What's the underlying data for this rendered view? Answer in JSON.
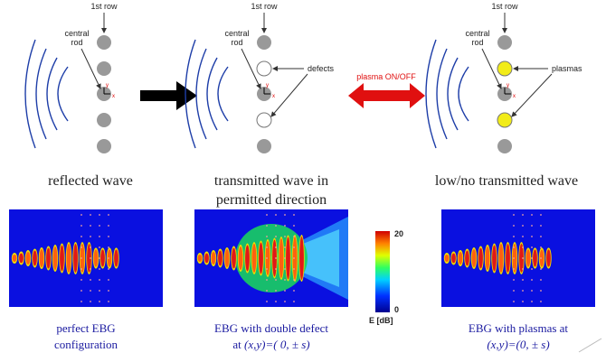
{
  "panels": [
    {
      "row_label": "1st row",
      "rod_label": [
        "central",
        "rod"
      ],
      "caption": [
        "reflected wave"
      ],
      "sim_caption": [
        "perfect EBG",
        "configuration"
      ]
    },
    {
      "row_label": "1st row",
      "rod_label": [
        "central",
        "rod"
      ],
      "annotation": "defects",
      "caption": [
        "transmitted wave in",
        "permitted direction"
      ],
      "sim_caption": [
        "EBG with double defect"
      ],
      "sim_prefix": "at",
      "sim_formula": "(x,y)=( 0, ± s)"
    },
    {
      "row_label": "1st row",
      "rod_label": [
        "central",
        "rod"
      ],
      "annotation": "plasmas",
      "caption": [
        "low/no transmitted wave"
      ],
      "sim_caption": [
        "EBG with plasmas at"
      ],
      "sim_formula": "(x,y)=(0, ± s)"
    }
  ],
  "switch_label": "plasma ON/OFF",
  "colorbar": {
    "max": "20",
    "min": "0",
    "label": "E [dB]"
  },
  "axes": {
    "x": "x",
    "y": "y"
  }
}
